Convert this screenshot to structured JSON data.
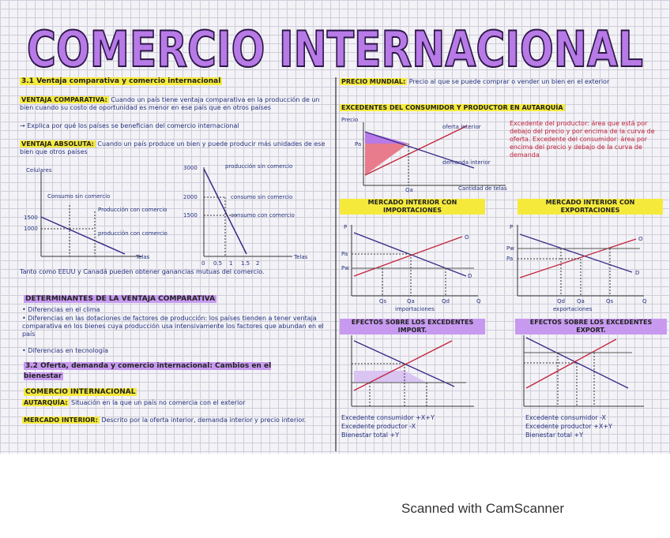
{
  "title": "COMERCIO INTERNACIONAL",
  "left": {
    "s31": "3.1 Ventaja comparativa y comercio internacional",
    "vc_label": "VENTAJA COMPARATIVA:",
    "vc_text": "Cuando un país tiene ventaja comparativa en la producción de un bien cuando su costo de oportunidad es menor en ese país que en otros países",
    "vc_note": "→ Explica por qué los países se benefician del comercio internacional",
    "va_label": "VENTAJA ABSOLUTA:",
    "va_text": "Cuando un país produce un bien y puede producir más unidades de ese bien que otros países",
    "graph1": {
      "y_label": "Celulares",
      "x_label": "Telas",
      "ticks": [
        "1500",
        "1000"
      ],
      "labels": [
        "Consumo sin comercio",
        "Producción con comercio",
        "producción con comercio"
      ]
    },
    "graph2": {
      "ticks": [
        "3000",
        "2000",
        "1500"
      ],
      "x_ticks": [
        "0",
        "0.5",
        "1",
        "1.5",
        "2"
      ],
      "x_label": "Telas",
      "labels": [
        "producción sin comercio",
        "consumo sin comercio",
        "consumo con comercio"
      ]
    },
    "conclusion": "Tanto como EEUU y Canadá pueden obtener ganancias mutuas del comercio.",
    "det_heading": "DETERMINANTES DE LA VENTAJA COMPARATIVA",
    "det_items": [
      "• Diferencias en el clima",
      "• Diferencias en las dotaciones de factores de producción: los países tienden a tener ventaja comparativa en los bienes cuya producción usa intensivamente los factores que abundan en el país",
      "• Diferencias en tecnología"
    ],
    "s32": "3.2 Oferta, demanda y comercio internacional: Cambios en el bienestar",
    "ci_heading": "COMERCIO INTERNACIONAL",
    "aut_label": "AUTARQUÍA:",
    "aut_text": "Situación en la que un país no comercia con el exterior",
    "mi_label": "MERCADO INTERIOR:",
    "mi_text": "Descrito por la oferta interior, demanda interior y precio interior."
  },
  "right": {
    "pm_label": "PRECIO MUNDIAL:",
    "pm_text": "Precio al que se puede comprar o vender un bien en el exterior",
    "aut_heading": "EXCEDENTES DEL CONSUMIDOR Y PRODUCTOR EN AUTARQUÍA",
    "aut_chart": {
      "labels": [
        "Precio",
        "oferta interior",
        "demanda interior",
        "Pa",
        "Qa",
        "Cantidad de telas"
      ]
    },
    "aut_note": "Excedente del productor: área que está por debajo del precio y por encima de la curva de oferta. Excedente del consumidor: área por encima del precio y debajo de la curva de demanda",
    "imp_heading": "MERCADO INTERIOR CON IMPORTACIONES",
    "exp_heading": "MERCADO INTERIOR CON EXPORTACIONES",
    "imp_chart": {
      "labels": [
        "P",
        "O",
        "D",
        "Pa",
        "Pw",
        "Qs",
        "Qa",
        "Qd",
        "Q",
        "importaciones"
      ]
    },
    "exp_chart": {
      "labels": [
        "P",
        "O",
        "D",
        "Pw",
        "Pa",
        "Qd",
        "Qa",
        "Qs",
        "Q",
        "exportaciones"
      ]
    },
    "eff_imp_heading": "EFECTOS SOBRE LOS EXCEDENTES IMPORT.",
    "eff_exp_heading": "EFECTOS SOBRE LOS EXCEDENTES EXPORT.",
    "eff_imp_lines": [
      "Excedente consumidor +X+Y",
      "Excedente productor -X",
      "Bienestar total +Y"
    ],
    "eff_exp_lines": [
      "Excedente consumidor -X",
      "Excedente productor +X+Y",
      "Bienestar total +Y"
    ]
  },
  "footer": "Scanned with CamScanner"
}
